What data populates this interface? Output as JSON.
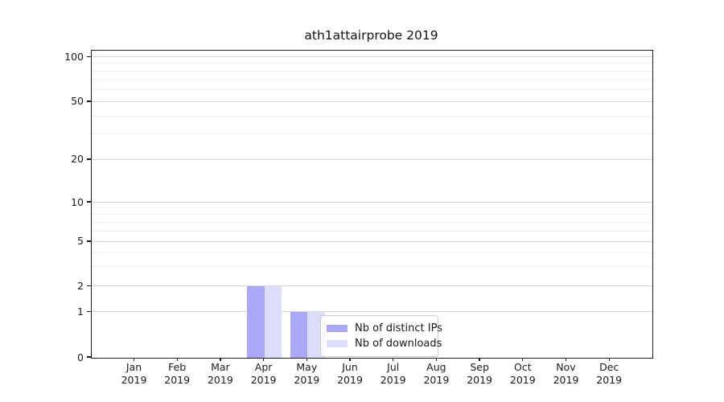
{
  "chart_data": {
    "type": "bar",
    "title": "ath1attairprobe 2019",
    "categories": [
      "Jan",
      "Feb",
      "Mar",
      "Apr",
      "May",
      "Jun",
      "Jul",
      "Aug",
      "Sep",
      "Oct",
      "Nov",
      "Dec"
    ],
    "x_tick_second_line": "2019",
    "series": [
      {
        "name": "Nb of distinct IPs",
        "color": "#a9a9f8",
        "values": [
          0,
          0,
          0,
          2,
          1,
          0,
          0,
          0,
          0,
          0,
          0,
          0
        ]
      },
      {
        "name": "Nb of downloads",
        "color": "#dcdcfb",
        "values": [
          0,
          0,
          0,
          2,
          1,
          0,
          0,
          0,
          0,
          0,
          0,
          0
        ]
      }
    ],
    "y_axis": {
      "scale": "log-with-zero",
      "tick_labels": [
        "0",
        "1",
        "2",
        "5",
        "10",
        "20",
        "50",
        "100"
      ],
      "range": [
        0,
        100
      ]
    },
    "xlabel": "",
    "ylabel": "",
    "grid": true,
    "legend_position": "lower-center"
  }
}
